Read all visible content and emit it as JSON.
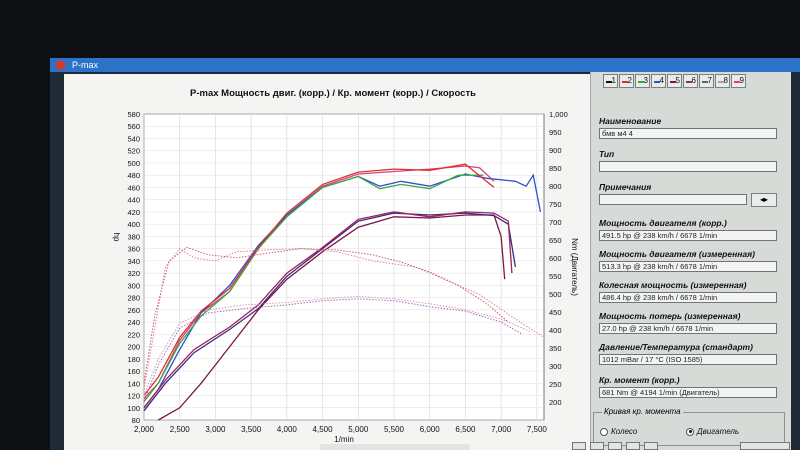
{
  "window": {
    "title": "P-max"
  },
  "chart_data": {
    "type": "line",
    "title": "P-max Мощность двиг. (корр.) / Кр. момент (корр.) / Скорость",
    "xlabel": "1/min",
    "ylabel_left": "hp",
    "ylabel_right": "Nm (Двигатель)",
    "xlim": [
      2000,
      7600
    ],
    "ylim_left": [
      80,
      580
    ],
    "ylim_right": [
      150,
      1000
    ],
    "x_ticks": [
      "2,000",
      "2,500",
      "3,000",
      "3,500",
      "4,000",
      "4,500",
      "5,000",
      "5,500",
      "6,000",
      "6,500",
      "7,000",
      "7,500"
    ],
    "y_left_ticks": [
      "80",
      "100",
      "120",
      "140",
      "160",
      "180",
      "200",
      "220",
      "240",
      "260",
      "280",
      "300",
      "320",
      "340",
      "360",
      "380",
      "400",
      "420",
      "440",
      "460",
      "480",
      "500",
      "520",
      "540",
      "560",
      "580"
    ],
    "y_right_ticks": [
      "200",
      "250",
      "300",
      "350",
      "400",
      "450",
      "500",
      "550",
      "600",
      "650",
      "700",
      "750",
      "800",
      "850",
      "900",
      "950",
      "1,000"
    ],
    "grid": true,
    "series": [
      {
        "axis": "left",
        "style": "solid",
        "color": "#e0407a",
        "x": [
          2000,
          2200,
          2500,
          2800,
          3200,
          3600,
          4000,
          4500,
          5000,
          5500,
          6000,
          6500,
          6700,
          6900
        ],
        "y": [
          115,
          140,
          210,
          255,
          290,
          360,
          415,
          462,
          482,
          486,
          490,
          495,
          492,
          470
        ]
      },
      {
        "axis": "left",
        "style": "solid",
        "color": "#2f4fcf",
        "x": [
          2000,
          2200,
          2500,
          2800,
          3200,
          3600,
          4000,
          4500,
          5000,
          5300,
          5600,
          6000,
          6500,
          6800,
          7200,
          7350,
          7450,
          7550
        ],
        "y": [
          100,
          130,
          195,
          255,
          300,
          365,
          415,
          460,
          478,
          462,
          470,
          462,
          482,
          475,
          470,
          462,
          480,
          420
        ]
      },
      {
        "axis": "left",
        "style": "solid",
        "color": "#3aa845",
        "x": [
          2000,
          2200,
          2500,
          2800,
          3200,
          3600,
          4000,
          4500,
          5000,
          5300,
          5600,
          6000,
          6400,
          6750
        ],
        "y": [
          110,
          140,
          205,
          250,
          290,
          360,
          412,
          460,
          478,
          458,
          465,
          458,
          480,
          480
        ]
      },
      {
        "axis": "left",
        "style": "solid",
        "color": "#d8332a",
        "x": [
          2000,
          2200,
          2500,
          2800,
          3200,
          3600,
          4000,
          4500,
          5000,
          5500,
          6000,
          6500,
          6900
        ],
        "y": [
          120,
          150,
          215,
          258,
          295,
          362,
          418,
          465,
          485,
          490,
          488,
          498,
          460
        ]
      },
      {
        "axis": "left",
        "style": "solid",
        "color": "#7a1840",
        "x": [
          2200,
          2500,
          2800,
          3200,
          3600,
          4000,
          4500,
          5000,
          5500,
          6000,
          6500,
          6900,
          7000,
          7050
        ],
        "y": [
          80,
          100,
          140,
          200,
          260,
          310,
          355,
          395,
          412,
          410,
          415,
          415,
          380,
          310
        ]
      },
      {
        "axis": "left",
        "style": "solid",
        "color": "#3b2a80",
        "x": [
          2000,
          2300,
          2700,
          3200,
          3600,
          4000,
          4500,
          5000,
          5500,
          6000,
          6500,
          6900,
          7100,
          7200
        ],
        "y": [
          95,
          140,
          190,
          228,
          262,
          315,
          360,
          405,
          418,
          415,
          418,
          414,
          400,
          330
        ]
      },
      {
        "axis": "left",
        "style": "solid",
        "color": "#a0205a",
        "x": [
          2000,
          2300,
          2700,
          3200,
          3600,
          4000,
          4500,
          5000,
          5500,
          6000,
          6500,
          6900,
          7100,
          7150
        ],
        "y": [
          100,
          145,
          195,
          232,
          268,
          320,
          362,
          408,
          420,
          412,
          420,
          418,
          405,
          320
        ]
      },
      {
        "axis": "left",
        "style": "dotted",
        "color": "#e07a8a",
        "x": [
          2000,
          2150,
          2300,
          2500,
          2700,
          3000,
          3300,
          3700,
          4200,
          4700,
          5200,
          5800,
          6200,
          6700,
          7200,
          7600
        ],
        "y": [
          130,
          230,
          330,
          360,
          345,
          340,
          355,
          358,
          360,
          355,
          340,
          330,
          310,
          285,
          245,
          215
        ]
      },
      {
        "axis": "left",
        "style": "dotted",
        "color": "#c05070",
        "x": [
          2000,
          2150,
          2350,
          2600,
          2900,
          3300,
          3700,
          4200,
          4700,
          5200,
          5600,
          6000,
          6400,
          6800,
          7100
        ],
        "y": [
          140,
          250,
          340,
          362,
          350,
          345,
          352,
          360,
          358,
          350,
          338,
          322,
          300,
          270,
          240
        ]
      },
      {
        "axis": "left",
        "style": "dotted",
        "color": "#9a60b0",
        "x": [
          2000,
          2200,
          2500,
          2900,
          3400,
          4000,
          4500,
          5000,
          5500,
          6000,
          6500,
          7000,
          7300
        ],
        "y": [
          110,
          170,
          230,
          255,
          262,
          268,
          275,
          278,
          275,
          265,
          258,
          240,
          220
        ]
      },
      {
        "axis": "left",
        "style": "dotted",
        "color": "#d090b0",
        "x": [
          2000,
          2200,
          2500,
          2900,
          3400,
          4000,
          4500,
          5000,
          5500,
          6000,
          6500,
          7000,
          7400
        ],
        "y": [
          120,
          180,
          238,
          260,
          268,
          272,
          278,
          282,
          278,
          270,
          260,
          245,
          225
        ]
      }
    ]
  },
  "tabs": [
    {
      "num": "1",
      "color": "#111111"
    },
    {
      "num": "2",
      "color": "#d8332a"
    },
    {
      "num": "3",
      "color": "#3aa845"
    },
    {
      "num": "4",
      "color": "#2f4fcf"
    },
    {
      "num": "5",
      "color": "#7a1840"
    },
    {
      "num": "6",
      "color": "#7a3a50"
    },
    {
      "num": "7",
      "color": "#6a5a70"
    },
    {
      "num": "8",
      "color": "#b0a0a0"
    },
    {
      "num": "9",
      "color": "#e0407a"
    }
  ],
  "panel": {
    "name_label": "Наименование",
    "name_value": "бмв м4 4",
    "type_label": "Тип",
    "type_value": "",
    "notes_label": "Примечания",
    "notes_value": "",
    "notes_button": "◂▸",
    "power_corr_label": "Мощность двигателя (корр.)",
    "power_corr_value": "491.5 hp @ 238 km/h / 6678 1/min",
    "power_meas_label": "Мощность двигателя (измеренная)",
    "power_meas_value": "513.3 hp @ 238 km/h / 6678 1/min",
    "wheel_label": "Колесная мощность (измеренная)",
    "wheel_value": "486.4 hp @ 238 km/h / 6678 1/min",
    "loss_label": "Мощность потерь (измеренная)",
    "loss_value": "27.0 hp @ 238 km/h / 6678 1/min",
    "pressure_label": "Давление/Температура (стандарт)",
    "pressure_value": "1012 mBar / 17 °C (ISO 1585)",
    "torque_label": "Кр. момент (корр.)",
    "torque_value": "681 Nm @ 4194 1/min (Двигатель)",
    "curve_group_label": "Кривая кр. момента",
    "radio_wheel": "Колесо",
    "radio_engine": "Двигатель"
  }
}
